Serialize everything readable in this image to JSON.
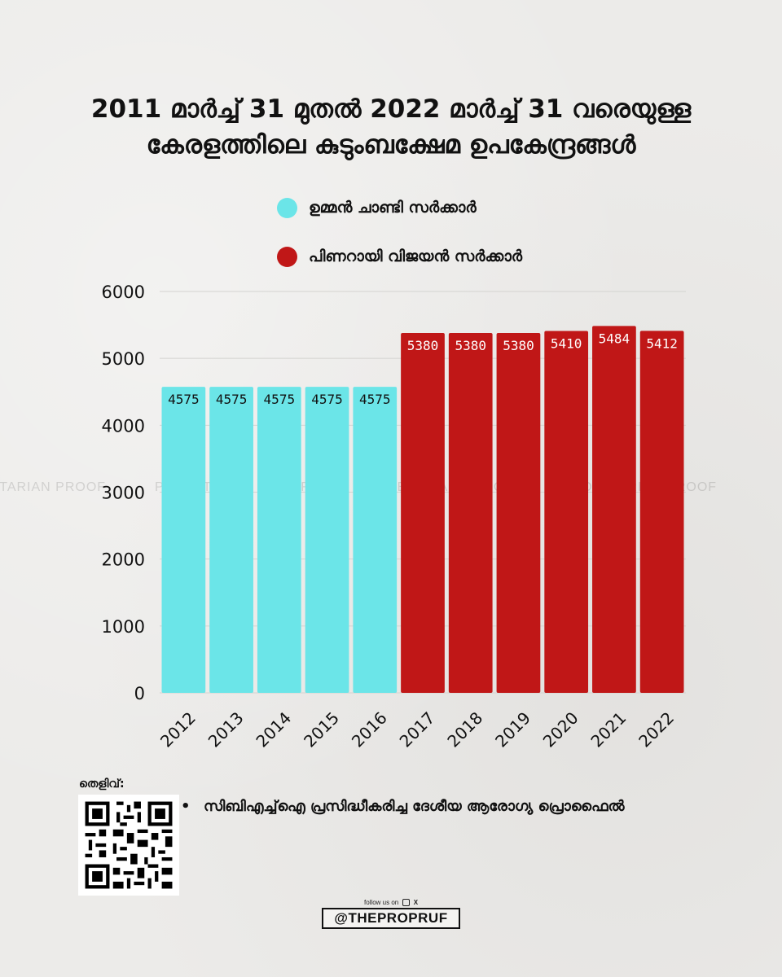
{
  "title": {
    "line1": "2011 മാർച്ച് 31 മുതൽ 2022 മാർച്ച് 31 വരെയുള്ള",
    "line2": "കേരളത്തിലെ കുടുംബക്ഷേമ ഉപകേന്ദ്രങ്ങൾ"
  },
  "legend": [
    {
      "label": "ഉമ്മൻ ചാണ്ടി സർക്കാർ",
      "color": "#6be5e8"
    },
    {
      "label": "പിണറായി വിജയൻ സർക്കാർ",
      "color": "#c01717"
    }
  ],
  "watermark": "PROLETARIAN PROOF",
  "chart_data": {
    "type": "bar",
    "categories": [
      "2012",
      "2013",
      "2014",
      "2015",
      "2016",
      "2017",
      "2018",
      "2019",
      "2020",
      "2021",
      "2022"
    ],
    "series": [
      {
        "name": "ഉമ്മൻ ചാണ്ടി സർക്കാർ",
        "color": "#6be5e8",
        "values": [
          4575,
          4575,
          4575,
          4575,
          4575,
          null,
          null,
          null,
          null,
          null,
          null
        ]
      },
      {
        "name": "പിണറായി വിജയൻ സർക്കാർ",
        "color": "#c01717",
        "values": [
          null,
          null,
          null,
          null,
          null,
          5380,
          5380,
          5380,
          5410,
          5484,
          5412
        ]
      }
    ],
    "data_labels": [
      "4575",
      "4575",
      "4575",
      "4575",
      "4575",
      "5380",
      "5380",
      "5380",
      "5410",
      "5484",
      "5412"
    ],
    "yticks": [
      0,
      1000,
      2000,
      3000,
      4000,
      5000,
      6000
    ],
    "ylim": [
      0,
      6000
    ],
    "grid": true,
    "xlabel": "",
    "ylabel": ""
  },
  "source": {
    "heading": "തെളിവ്:",
    "items": [
      "സിബിഎച്ച്ഐ പ്രസിദ്ധീകരിച്ച ദേശീയ ആരോഗ്യ പ്രൊഫൈൽ"
    ]
  },
  "footer": {
    "follow": "follow us on",
    "handle": "@THEPROPRUF"
  }
}
